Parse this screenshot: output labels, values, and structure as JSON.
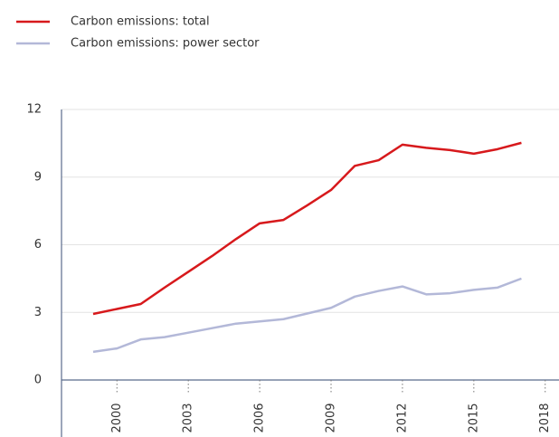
{
  "chart_data": {
    "type": "line",
    "x": [
      1999,
      2000,
      2001,
      2002,
      2003,
      2004,
      2005,
      2006,
      2007,
      2008,
      2009,
      2010,
      2011,
      2012,
      2013,
      2014,
      2015,
      2016,
      2017
    ],
    "series": [
      {
        "name": "Carbon emissions: total",
        "color": "#d7191c",
        "values": [
          2.93,
          3.15,
          3.37,
          4.1,
          4.8,
          5.5,
          6.25,
          6.95,
          7.1,
          7.75,
          8.43,
          9.5,
          9.75,
          10.44,
          10.3,
          10.2,
          10.04,
          10.24,
          10.52
        ]
      },
      {
        "name": "Carbon emissions: power sector",
        "color": "#b3b8d8",
        "values": [
          1.25,
          1.4,
          1.8,
          1.9,
          2.1,
          2.3,
          2.5,
          2.6,
          2.7,
          2.95,
          3.2,
          3.7,
          3.95,
          4.15,
          3.8,
          3.85,
          4.0,
          4.1,
          4.5
        ]
      }
    ],
    "xlim": [
      1997.67,
      2018.58
    ],
    "xticks": [
      2000,
      2003,
      2006,
      2009,
      2012,
      2015,
      2018
    ],
    "ylim": [
      0,
      12
    ],
    "yticks": [
      0,
      3,
      6,
      9,
      12
    ],
    "grid": true
  }
}
